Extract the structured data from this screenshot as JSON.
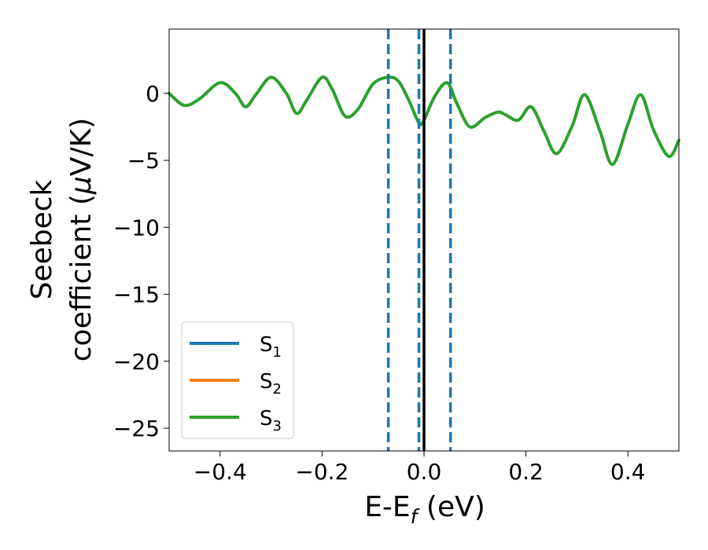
{
  "chart_data": {
    "type": "line",
    "xlabel": {
      "main": "E-E",
      "sub": "f",
      "unit": " (eV)"
    },
    "ylabel": {
      "line1": "Seebeck",
      "line2": "coefficient  (",
      "mu": "μ",
      "unit": "V/K)"
    },
    "xlim": [
      -0.5,
      0.5
    ],
    "ylim": [
      -26.7,
      4.8
    ],
    "x_ticks": [
      -0.4,
      -0.2,
      0.0,
      0.2,
      0.4
    ],
    "x_tick_labels": [
      "−0.4",
      "−0.2",
      "0.0",
      "0.2",
      "0.4"
    ],
    "y_ticks": [
      0,
      -5,
      -10,
      -15,
      -20,
      -25
    ],
    "y_tick_labels": [
      "0",
      "−5",
      "−10",
      "−15",
      "−20",
      "−25"
    ],
    "grid": false,
    "legend_position": "lower-left",
    "series": [
      {
        "name": "S",
        "sub": "1",
        "color": "#1f77b4",
        "x": [],
        "y": []
      },
      {
        "name": "S",
        "sub": "2",
        "color": "#ff7f0e",
        "x": [],
        "y": []
      },
      {
        "name": "S",
        "sub": "3",
        "color": "#2ca02c",
        "x": [
          -0.5,
          -0.47,
          -0.44,
          -0.4,
          -0.37,
          -0.35,
          -0.33,
          -0.3,
          -0.27,
          -0.25,
          -0.23,
          -0.2,
          -0.18,
          -0.155,
          -0.13,
          -0.1,
          -0.07,
          -0.05,
          -0.03,
          -0.01,
          0.0,
          0.02,
          0.045,
          0.065,
          0.09,
          0.12,
          0.145,
          0.16,
          0.185,
          0.21,
          0.235,
          0.26,
          0.29,
          0.315,
          0.345,
          0.37,
          0.4,
          0.425,
          0.45,
          0.48,
          0.5
        ],
        "y": [
          0.0,
          -0.9,
          -0.4,
          0.8,
          0.0,
          -1.0,
          -0.1,
          1.2,
          0.0,
          -1.5,
          -0.5,
          1.2,
          0.3,
          -1.7,
          -1.2,
          0.7,
          1.2,
          0.9,
          -0.5,
          -2.2,
          -2.0,
          -0.3,
          0.8,
          -0.8,
          -2.5,
          -1.8,
          -1.4,
          -1.6,
          -2.0,
          -1.0,
          -2.8,
          -4.5,
          -2.5,
          -0.1,
          -2.8,
          -5.3,
          -2.3,
          -0.1,
          -2.7,
          -4.7,
          -3.5
        ]
      }
    ],
    "vlines": [
      {
        "x": -0.07,
        "style": "dashed",
        "color": "#1f77b4"
      },
      {
        "x": -0.01,
        "style": "dashed",
        "color": "#1f77b4"
      },
      {
        "x": 0.0,
        "style": "solid",
        "color": "#000000"
      },
      {
        "x": 0.052,
        "style": "dashed",
        "color": "#1f77b4"
      }
    ]
  }
}
